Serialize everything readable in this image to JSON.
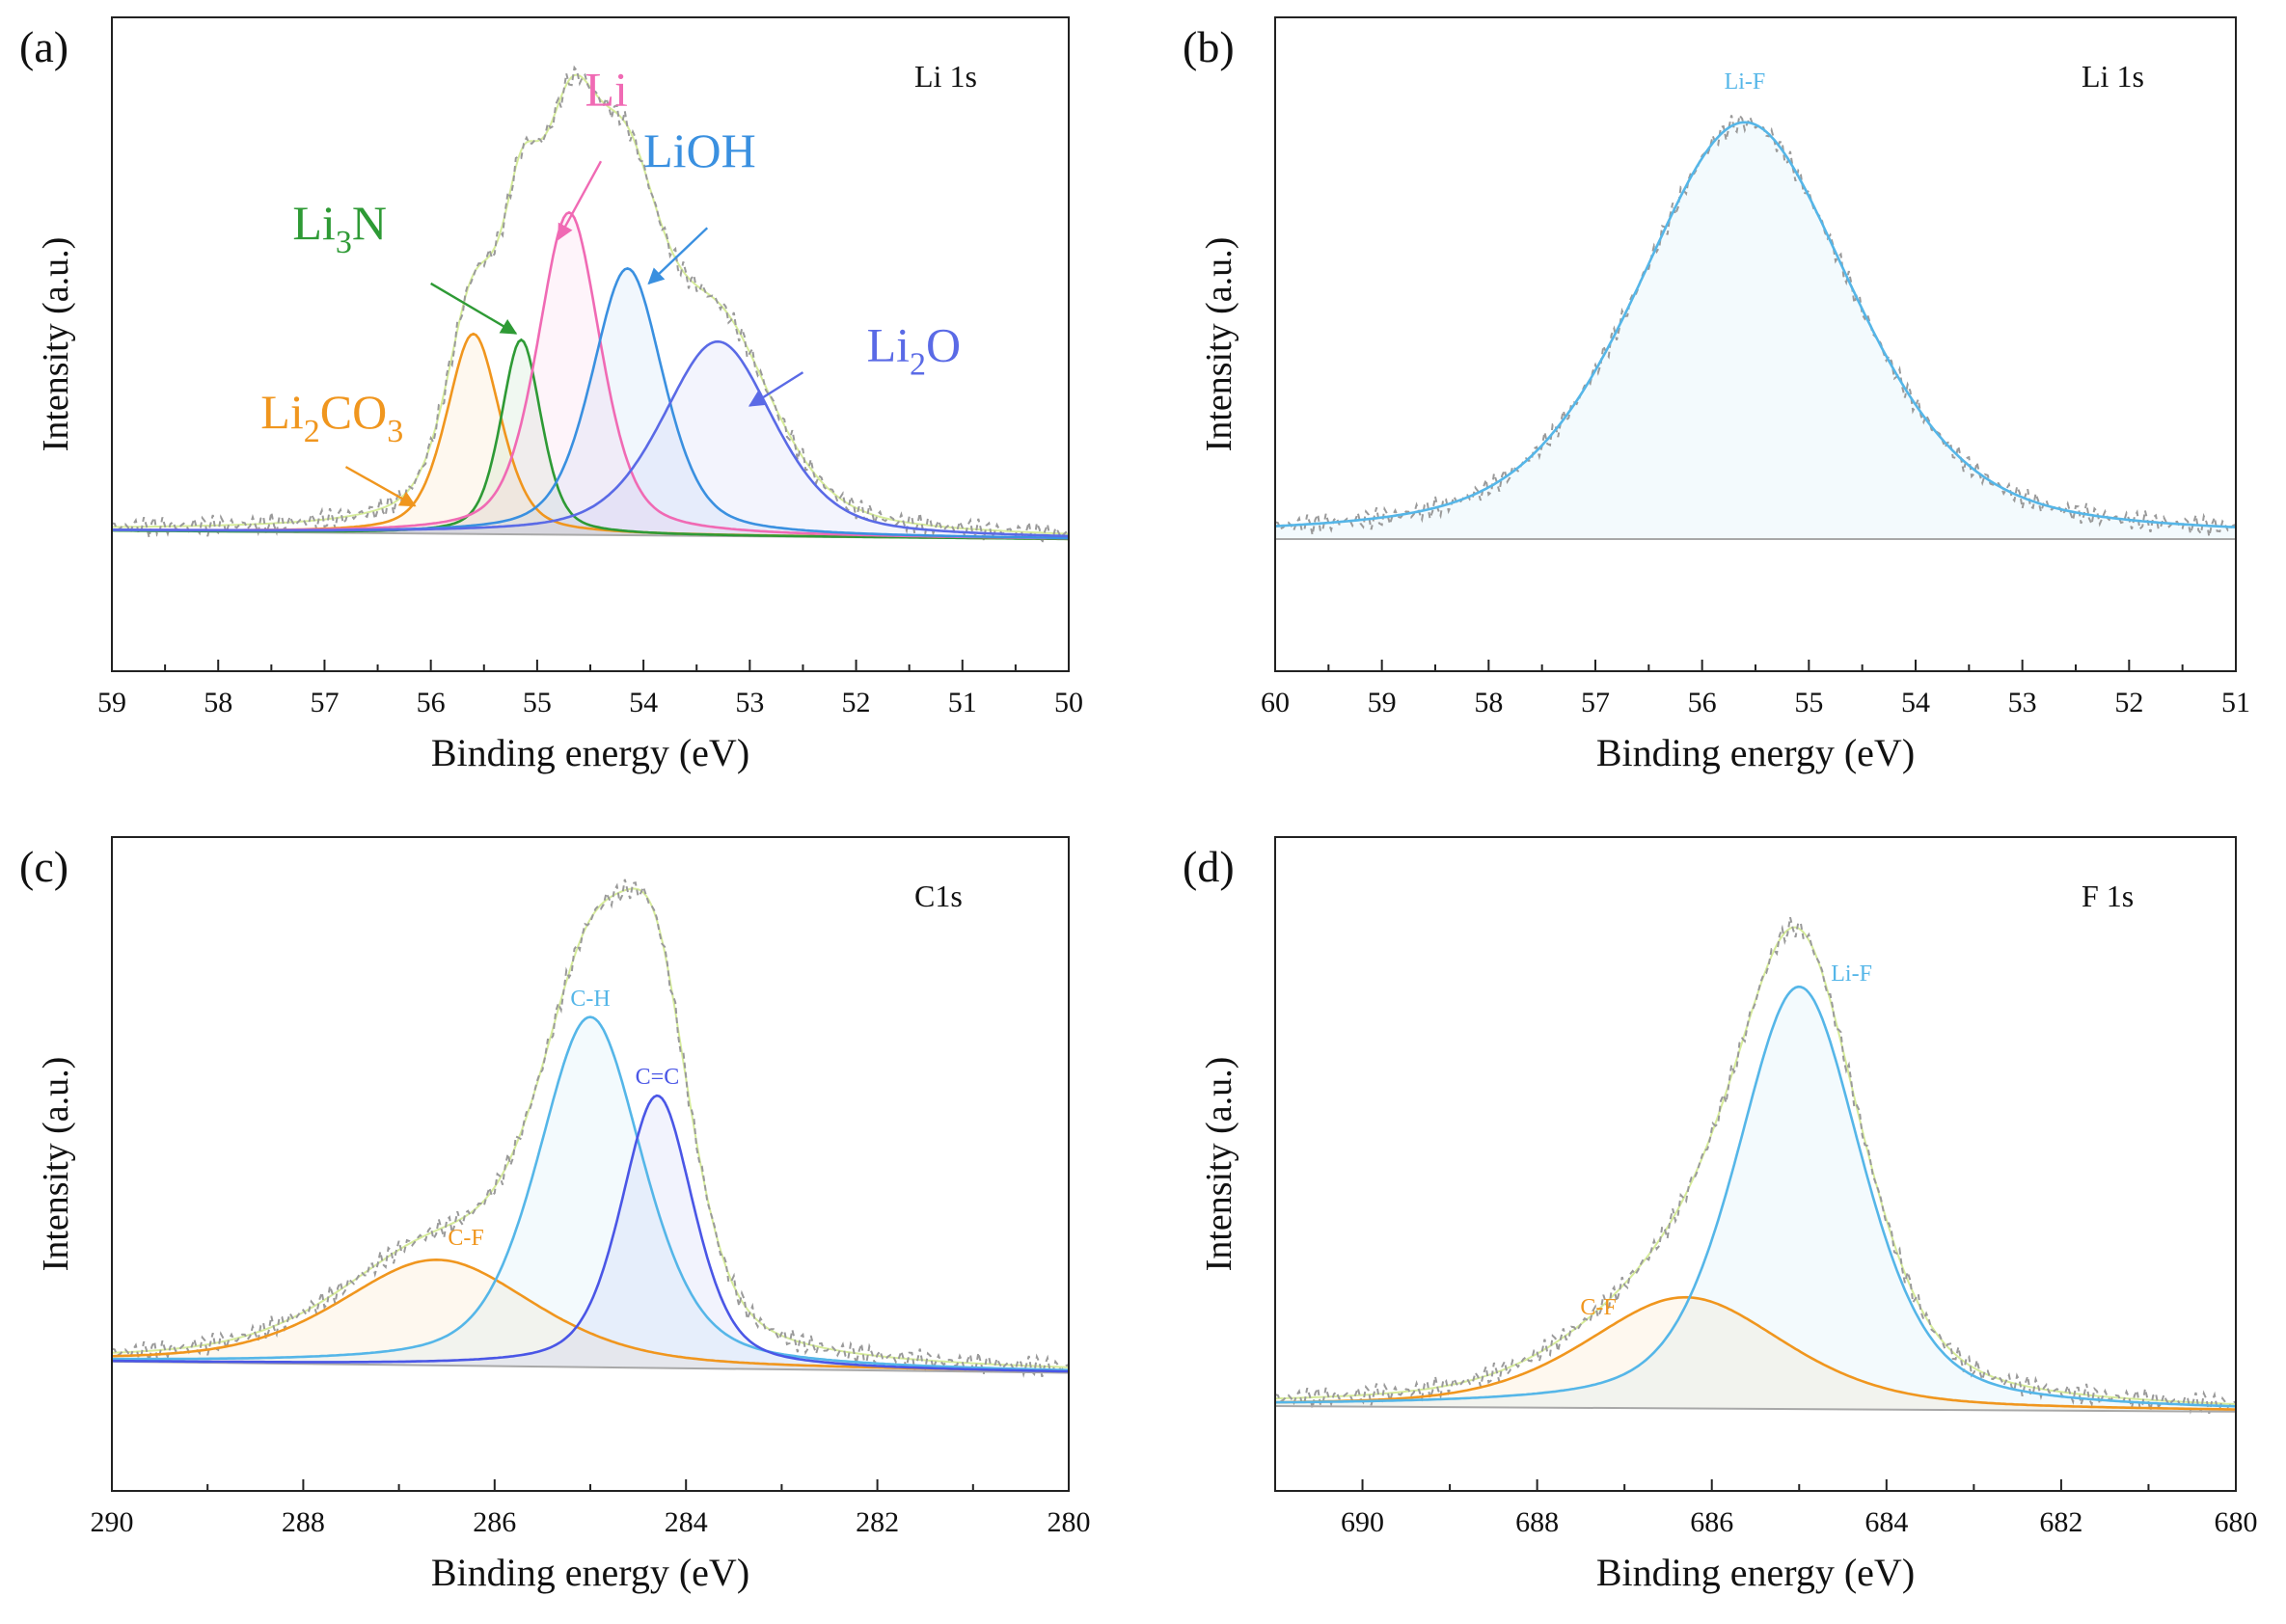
{
  "figure": {
    "colors": {
      "frame": "#222222",
      "raw": "#9a9a9a",
      "envelope": "#d6ec9a",
      "background_line": "#a8a8a8",
      "Li2CO3": "#f0961e",
      "Li3N": "#2e9a35",
      "Li": "#f06ab4",
      "LiOH": "#3a90e0",
      "Li2O": "#5a6ae6",
      "LiF": "#55b6e8",
      "CF": "#f0961e",
      "CH": "#55b6e8",
      "CC": "#4a56e6"
    }
  },
  "chart_data": [
    {
      "id": "a",
      "type": "line",
      "panel_label": "(a)",
      "title": "Li 1s",
      "xlabel": "Binding energy  (eV)",
      "ylabel": "Intensity (a.u.)",
      "xlim": [
        59,
        50
      ],
      "ylim": [
        0,
        1.0
      ],
      "xticks": [
        "59",
        "58",
        "57",
        "56",
        "55",
        "54",
        "53",
        "52",
        "51",
        "50"
      ],
      "baseline": {
        "x_start": 59,
        "y_start": 0.135,
        "x_end": 50,
        "y_end": 0.12
      },
      "series": [
        {
          "name": "Li2CO3",
          "center": 55.6,
          "height": 0.36,
          "fwhm": 0.6,
          "color_key": "Li2CO3"
        },
        {
          "name": "Li3N",
          "center": 55.15,
          "height": 0.35,
          "fwhm": 0.45,
          "color_key": "Li3N"
        },
        {
          "name": "Li",
          "center": 54.7,
          "height": 0.58,
          "fwhm": 0.7,
          "color_key": "Li"
        },
        {
          "name": "LiOH",
          "center": 54.15,
          "height": 0.48,
          "fwhm": 0.8,
          "color_key": "LiOH"
        },
        {
          "name": "Li2O",
          "center": 53.3,
          "height": 0.35,
          "fwhm": 1.25,
          "color_key": "Li2O"
        }
      ],
      "annotations": [
        {
          "text": "Li",
          "sub": "",
          "tail": "",
          "color_key": "Li",
          "pos": [
            54.55,
            0.9
          ],
          "arrow_from": [
            54.4,
            0.8
          ],
          "arrow_to": [
            54.8,
            0.66
          ]
        },
        {
          "text": "LiOH",
          "sub": "",
          "tail": "",
          "color_key": "LiOH",
          "pos": [
            54.0,
            0.79
          ],
          "arrow_from": [
            53.4,
            0.68
          ],
          "arrow_to": [
            53.95,
            0.58
          ]
        },
        {
          "text": "Li",
          "sub": "3",
          "tail": "N",
          "color_key": "Li3N",
          "pos": [
            57.3,
            0.66
          ],
          "arrow_from": [
            56.0,
            0.58
          ],
          "arrow_to": [
            55.2,
            0.49
          ]
        },
        {
          "text": "Li",
          "sub": "2",
          "tail": "O",
          "color_key": "Li2O",
          "pos": [
            51.9,
            0.44
          ],
          "arrow_from": [
            52.5,
            0.42
          ],
          "arrow_to": [
            53.0,
            0.36
          ]
        },
        {
          "text": "Li",
          "sub": "2",
          "tail": "CO",
          "sub2": "3",
          "color_key": "Li2CO3",
          "pos": [
            57.6,
            0.32
          ],
          "arrow_from": [
            56.8,
            0.25
          ],
          "arrow_to": [
            56.15,
            0.18
          ]
        }
      ],
      "peak_labels": []
    },
    {
      "id": "b",
      "type": "line",
      "panel_label": "(b)",
      "title": "Li 1s",
      "xlabel": "Binding energy  (eV)",
      "ylabel": "Intensity (a.u.)",
      "xlim": [
        60,
        51
      ],
      "ylim": [
        0,
        1.0
      ],
      "xticks": [
        "60",
        "59",
        "58",
        "57",
        "56",
        "55",
        "54",
        "53",
        "52",
        "51"
      ],
      "baseline": {
        "x_start": 60,
        "y_start": 0.12,
        "x_end": 51,
        "y_end": 0.12
      },
      "series": [
        {
          "name": "Li-F",
          "center": 55.6,
          "height": 0.75,
          "fwhm": 2.4,
          "color_key": "LiF"
        }
      ],
      "annotations": [],
      "peak_labels": [
        {
          "text": "Li-F",
          "color_key": "LiF",
          "pos": [
            55.6,
            0.93
          ]
        }
      ]
    },
    {
      "id": "c",
      "type": "line",
      "panel_label": "(c)",
      "title": "C1s",
      "xlabel": "Binding energy  (eV)",
      "ylabel": "Intensity (a.u.)",
      "xlim": [
        290,
        280
      ],
      "ylim": [
        0,
        1.0
      ],
      "xticks": [
        "290",
        "288",
        "286",
        "284",
        "282",
        "280"
      ],
      "baseline": {
        "x_start": 290,
        "y_start": 0.115,
        "x_end": 280,
        "y_end": 0.095
      },
      "series": [
        {
          "name": "C-F",
          "center": 286.6,
          "height": 0.19,
          "fwhm": 2.4,
          "color_key": "CF"
        },
        {
          "name": "C-H",
          "center": 285.0,
          "height": 0.63,
          "fwhm": 1.3,
          "color_key": "CH"
        },
        {
          "name": "C=C",
          "center": 284.3,
          "height": 0.49,
          "fwhm": 0.9,
          "color_key": "CC"
        }
      ],
      "annotations": [],
      "peak_labels": [
        {
          "text": "C-F",
          "color_key": "CF",
          "pos": [
            286.3,
            0.325
          ]
        },
        {
          "text": "C-H",
          "color_key": "CH",
          "pos": [
            285.0,
            0.755
          ]
        },
        {
          "text": "C=C",
          "color_key": "CC",
          "pos": [
            284.3,
            0.615
          ]
        }
      ]
    },
    {
      "id": "d",
      "type": "line",
      "panel_label": "(d)",
      "title": "F 1s",
      "xlabel": "Binding energy  (eV)",
      "ylabel": "Intensity (a.u.)",
      "xlim": [
        691,
        680
      ],
      "ylim": [
        0,
        1.0
      ],
      "xticks": [
        "690",
        "688",
        "686",
        "684",
        "682",
        "680"
      ],
      "baseline": {
        "x_start": 691,
        "y_start": 0.035,
        "x_end": 680,
        "y_end": 0.025
      },
      "series": [
        {
          "name": "C-F",
          "center": 686.3,
          "height": 0.2,
          "fwhm": 2.7,
          "color_key": "CF"
        },
        {
          "name": "Li-F",
          "center": 685.0,
          "height": 0.76,
          "fwhm": 1.7,
          "color_key": "LiF"
        }
      ],
      "annotations": [],
      "peak_labels": [
        {
          "text": "C-F",
          "color_key": "CF",
          "pos": [
            687.3,
            0.2
          ]
        },
        {
          "text": "Li-F",
          "color_key": "LiF",
          "pos": [
            684.4,
            0.8
          ]
        }
      ]
    }
  ]
}
